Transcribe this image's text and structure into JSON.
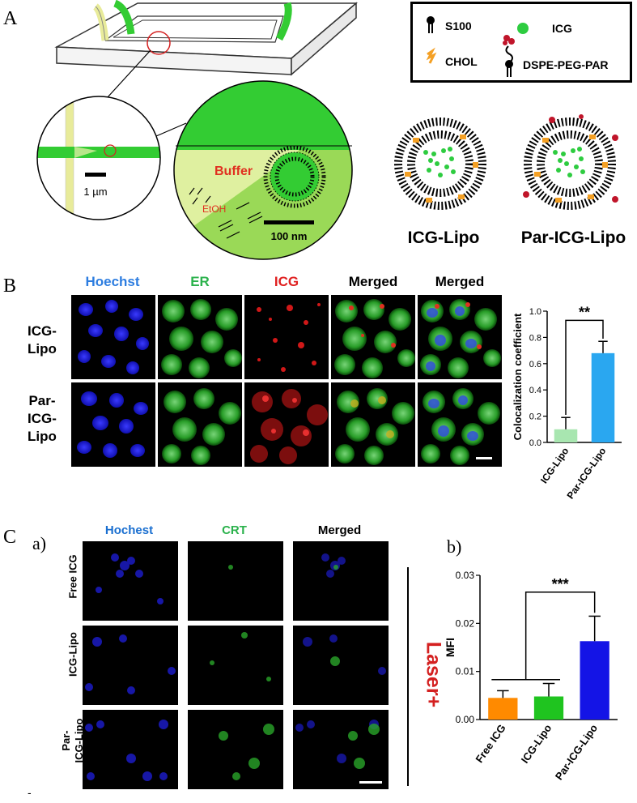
{
  "panels": {
    "A": {
      "letter": "A",
      "legend": {
        "s100": "S100",
        "icg": "ICG",
        "chol": "CHOL",
        "dspe": "DSPE-PEG-PAR"
      },
      "scale_small": "1 µm",
      "scale_large": "100 nm",
      "buffer": "Buffer",
      "etoh": "EtOH",
      "lipo1": "ICG-Lipo",
      "lipo2": "Par-ICG-Lipo",
      "colors": {
        "channel_green": "#33cc33",
        "channel_yellow": "#e8eb9a",
        "icg_dot": "#2ecc40",
        "chol": "#f4a024",
        "par": "#c0152a",
        "buffer_text": "#e03020"
      }
    },
    "B": {
      "letter": "B",
      "columns": [
        "Hoechst",
        "ER",
        "ICG",
        "Merged",
        "Merged"
      ],
      "column_colors": [
        "#2d7de0",
        "#2bb24c",
        "#e02020",
        "#111111",
        "#111111"
      ],
      "rows": [
        "ICG-\nLipo",
        "Par-\nICG-\nLipo"
      ]
    },
    "C": {
      "letter": "C",
      "sub_a": "a)",
      "sub_b": "b)",
      "columns": [
        "Hochest",
        "CRT",
        "Merged"
      ],
      "column_colors": [
        "#1a6fd0",
        "#2bb24c",
        "#111111"
      ],
      "rows": [
        "Free ICG",
        "ICG-Lipo",
        "Par-\nICG-Lipo"
      ],
      "laser": "Laser+",
      "laser_color": "#d42020"
    },
    "footer_mark": "-"
  },
  "chart_data": [
    {
      "type": "bar",
      "categories": [
        "ICG-Lipo",
        "Par-ICG-Lipo"
      ],
      "values": [
        0.1,
        0.68
      ],
      "errors": [
        0.09,
        0.09
      ],
      "colors": [
        "#a8e6b0",
        "#2aa7f0"
      ],
      "ylabel": "Colocalization coefficient",
      "ylim": [
        0,
        1.0
      ],
      "yticks": [
        "0.0",
        "0.2",
        "0.4",
        "0.6",
        "0.8",
        "1.0"
      ],
      "significance": "**"
    },
    {
      "type": "bar",
      "categories": [
        "Free ICG",
        "ICG-Lipo",
        "Par-ICG-Lipo"
      ],
      "values": [
        0.0045,
        0.0048,
        0.0163
      ],
      "errors": [
        0.0015,
        0.0027,
        0.0052
      ],
      "colors": [
        "#ff8a00",
        "#1fc41f",
        "#1414e6"
      ],
      "ylabel": "MFI",
      "ylim": [
        0,
        0.03
      ],
      "yticks": [
        "0.00",
        "0.01",
        "0.02",
        "0.03"
      ],
      "significance": "***"
    }
  ]
}
